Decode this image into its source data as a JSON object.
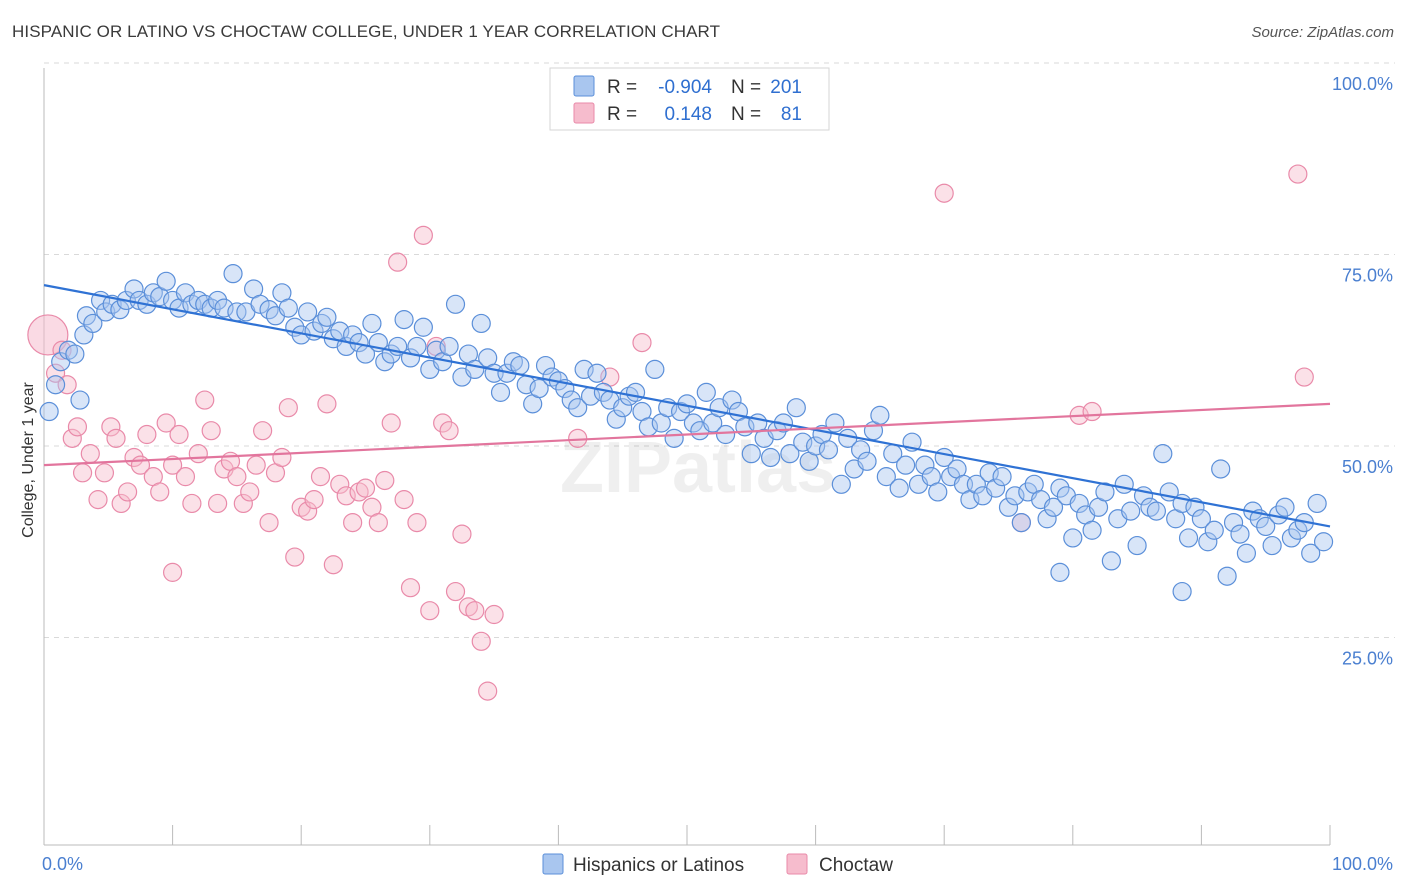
{
  "title": "HISPANIC OR LATINO VS CHOCTAW COLLEGE, UNDER 1 YEAR CORRELATION CHART",
  "source": "Source: ZipAtlas.com",
  "watermark": "ZIPatlas",
  "colors": {
    "blue_fill": "#a9c6ef",
    "blue_stroke": "#5b8fd9",
    "blue_line": "#2f72d4",
    "pink_fill": "#f6bccd",
    "pink_stroke": "#e98aa9",
    "pink_line": "#e2759d",
    "tick_text": "#4a7fd0",
    "grid": "#d9d9d9"
  },
  "legend": {
    "rows": [
      {
        "r_label": "R =",
        "r_value": "-0.904",
        "n_label": "N =",
        "n_value": "201"
      },
      {
        "r_label": "R =",
        "r_value": "0.148",
        "n_label": "N =",
        "n_value": "81"
      }
    ]
  },
  "chart_data": {
    "type": "scatter",
    "title": "HISPANIC OR LATINO VS CHOCTAW COLLEGE, UNDER 1 YEAR CORRELATION CHART",
    "xlabel": "",
    "ylabel": "College, Under 1 year",
    "xlim": [
      0,
      100
    ],
    "ylim": [
      0,
      100
    ],
    "x_tick_labels": [
      "0.0%",
      "100.0%"
    ],
    "y_ticks": [
      25,
      50,
      75,
      100
    ],
    "y_tick_labels": [
      "25.0%",
      "50.0%",
      "75.0%",
      "100.0%"
    ],
    "grid": "horizontal dashed",
    "legend_position": "top-center",
    "series": [
      {
        "name": "Hispanics or Latinos",
        "R": -0.904,
        "N": 201,
        "trend": {
          "x": [
            0,
            100
          ],
          "y": [
            71.0,
            39.5
          ]
        },
        "points": [
          [
            0.4,
            54.5
          ],
          [
            0.9,
            58.0
          ],
          [
            1.3,
            61.0
          ],
          [
            1.9,
            62.5
          ],
          [
            2.4,
            62.0
          ],
          [
            2.8,
            56.0
          ],
          [
            3.1,
            64.5
          ],
          [
            3.3,
            67.0
          ],
          [
            3.8,
            66.0
          ],
          [
            4.4,
            69.0
          ],
          [
            4.8,
            67.5
          ],
          [
            5.3,
            68.5
          ],
          [
            5.9,
            67.8
          ],
          [
            6.4,
            69.0
          ],
          [
            7.0,
            70.5
          ],
          [
            7.4,
            69.0
          ],
          [
            8.0,
            68.5
          ],
          [
            8.5,
            70.0
          ],
          [
            9.0,
            69.5
          ],
          [
            9.5,
            71.5
          ],
          [
            10.0,
            69.0
          ],
          [
            10.5,
            68.0
          ],
          [
            11.0,
            70.0
          ],
          [
            11.5,
            68.5
          ],
          [
            12.0,
            69.0
          ],
          [
            12.5,
            68.5
          ],
          [
            13.0,
            68.0
          ],
          [
            13.5,
            69.0
          ],
          [
            14.0,
            68.0
          ],
          [
            14.7,
            72.5
          ],
          [
            15.0,
            67.5
          ],
          [
            15.7,
            67.5
          ],
          [
            16.3,
            70.5
          ],
          [
            16.8,
            68.5
          ],
          [
            17.5,
            67.8
          ],
          [
            18.0,
            67.0
          ],
          [
            18.5,
            70.0
          ],
          [
            19.0,
            68.0
          ],
          [
            19.5,
            65.5
          ],
          [
            20.0,
            64.5
          ],
          [
            20.5,
            67.5
          ],
          [
            21.0,
            65.0
          ],
          [
            21.6,
            66.0
          ],
          [
            22.0,
            66.8
          ],
          [
            22.5,
            64.0
          ],
          [
            23.0,
            65.0
          ],
          [
            23.5,
            63.0
          ],
          [
            24.0,
            64.5
          ],
          [
            24.5,
            63.5
          ],
          [
            25.0,
            62.0
          ],
          [
            25.5,
            66.0
          ],
          [
            26.0,
            63.5
          ],
          [
            26.5,
            61.0
          ],
          [
            27.0,
            62.0
          ],
          [
            27.5,
            63.0
          ],
          [
            28.0,
            66.5
          ],
          [
            28.5,
            61.5
          ],
          [
            29.0,
            63.0
          ],
          [
            29.5,
            65.5
          ],
          [
            30.0,
            60.0
          ],
          [
            30.5,
            62.5
          ],
          [
            31.0,
            61.0
          ],
          [
            31.5,
            63.0
          ],
          [
            32.0,
            68.5
          ],
          [
            32.5,
            59.0
          ],
          [
            33.0,
            62.0
          ],
          [
            33.5,
            60.0
          ],
          [
            34.0,
            66.0
          ],
          [
            34.5,
            61.5
          ],
          [
            35.0,
            59.5
          ],
          [
            35.5,
            57.0
          ],
          [
            36.0,
            59.5
          ],
          [
            36.5,
            61.0
          ],
          [
            37.0,
            60.5
          ],
          [
            37.5,
            58.0
          ],
          [
            38.0,
            55.5
          ],
          [
            38.5,
            57.5
          ],
          [
            39.0,
            60.5
          ],
          [
            39.5,
            59.0
          ],
          [
            40.0,
            58.5
          ],
          [
            40.5,
            57.5
          ],
          [
            41.0,
            56.0
          ],
          [
            41.5,
            55.0
          ],
          [
            42.0,
            60.0
          ],
          [
            42.5,
            56.5
          ],
          [
            43.0,
            59.5
          ],
          [
            43.5,
            57.0
          ],
          [
            44.0,
            56.0
          ],
          [
            44.5,
            53.5
          ],
          [
            45.0,
            55.0
          ],
          [
            45.5,
            56.5
          ],
          [
            46.0,
            57.0
          ],
          [
            46.5,
            54.5
          ],
          [
            47.0,
            52.5
          ],
          [
            47.5,
            60.0
          ],
          [
            48.0,
            53.0
          ],
          [
            48.5,
            55.0
          ],
          [
            49.0,
            51.0
          ],
          [
            49.5,
            54.5
          ],
          [
            50.0,
            55.5
          ],
          [
            50.5,
            53.0
          ],
          [
            51.0,
            52.0
          ],
          [
            51.5,
            57.0
          ],
          [
            52.0,
            53.0
          ],
          [
            52.5,
            55.0
          ],
          [
            53.0,
            51.5
          ],
          [
            53.5,
            56.0
          ],
          [
            54.0,
            54.5
          ],
          [
            54.5,
            52.5
          ],
          [
            55.0,
            49.0
          ],
          [
            55.5,
            53.0
          ],
          [
            56.0,
            51.0
          ],
          [
            56.5,
            48.5
          ],
          [
            57.0,
            52.0
          ],
          [
            57.5,
            53.0
          ],
          [
            58.0,
            49.0
          ],
          [
            58.5,
            55.0
          ],
          [
            59.0,
            50.5
          ],
          [
            59.5,
            48.0
          ],
          [
            60.0,
            50.0
          ],
          [
            60.5,
            51.5
          ],
          [
            61.0,
            49.5
          ],
          [
            61.5,
            53.0
          ],
          [
            62.0,
            45.0
          ],
          [
            62.5,
            51.0
          ],
          [
            63.0,
            47.0
          ],
          [
            63.5,
            49.5
          ],
          [
            64.0,
            48.0
          ],
          [
            64.5,
            52.0
          ],
          [
            65.0,
            54.0
          ],
          [
            65.5,
            46.0
          ],
          [
            66.0,
            49.0
          ],
          [
            66.5,
            44.5
          ],
          [
            67.0,
            47.5
          ],
          [
            67.5,
            50.5
          ],
          [
            68.0,
            45.0
          ],
          [
            68.5,
            47.5
          ],
          [
            69.0,
            46.0
          ],
          [
            69.5,
            44.0
          ],
          [
            70.0,
            48.5
          ],
          [
            70.5,
            46.0
          ],
          [
            71.0,
            47.0
          ],
          [
            71.5,
            45.0
          ],
          [
            72.0,
            43.0
          ],
          [
            72.5,
            45.0
          ],
          [
            73.0,
            43.5
          ],
          [
            73.5,
            46.5
          ],
          [
            74.0,
            44.5
          ],
          [
            74.5,
            46.0
          ],
          [
            75.0,
            42.0
          ],
          [
            75.5,
            43.5
          ],
          [
            76.0,
            40.0
          ],
          [
            76.5,
            44.0
          ],
          [
            77.0,
            45.0
          ],
          [
            77.5,
            43.0
          ],
          [
            78.0,
            40.5
          ],
          [
            78.5,
            42.0
          ],
          [
            79.0,
            44.5
          ],
          [
            79.5,
            43.5
          ],
          [
            80.0,
            38.0
          ],
          [
            80.5,
            42.5
          ],
          [
            81.0,
            41.0
          ],
          [
            81.5,
            39.0
          ],
          [
            82.0,
            42.0
          ],
          [
            82.5,
            44.0
          ],
          [
            83.0,
            35.0
          ],
          [
            83.5,
            40.5
          ],
          [
            84.0,
            45.0
          ],
          [
            84.5,
            41.5
          ],
          [
            85.0,
            37.0
          ],
          [
            85.5,
            43.5
          ],
          [
            86.0,
            42.0
          ],
          [
            86.5,
            41.5
          ],
          [
            87.0,
            49.0
          ],
          [
            87.5,
            44.0
          ],
          [
            88.0,
            40.5
          ],
          [
            88.5,
            42.5
          ],
          [
            89.0,
            38.0
          ],
          [
            89.5,
            42.0
          ],
          [
            90.0,
            40.5
          ],
          [
            90.5,
            37.5
          ],
          [
            91.0,
            39.0
          ],
          [
            91.5,
            47.0
          ],
          [
            92.0,
            33.0
          ],
          [
            92.5,
            40.0
          ],
          [
            93.0,
            38.5
          ],
          [
            93.5,
            36.0
          ],
          [
            94.0,
            41.5
          ],
          [
            94.5,
            40.5
          ],
          [
            95.0,
            39.5
          ],
          [
            95.5,
            37.0
          ],
          [
            96.0,
            41.0
          ],
          [
            96.5,
            42.0
          ],
          [
            97.0,
            38.0
          ],
          [
            97.5,
            39.0
          ],
          [
            98.0,
            40.0
          ],
          [
            98.5,
            36.0
          ],
          [
            99.0,
            42.5
          ],
          [
            99.5,
            37.5
          ],
          [
            88.5,
            31.0
          ],
          [
            79.0,
            33.5
          ]
        ]
      },
      {
        "name": "Choctaw",
        "R": 0.148,
        "N": 81,
        "trend": {
          "x": [
            0,
            100
          ],
          "y": [
            47.5,
            55.5
          ]
        },
        "points": [
          [
            0.3,
            64.5
          ],
          [
            0.9,
            59.5
          ],
          [
            1.4,
            62.5
          ],
          [
            1.8,
            58.0
          ],
          [
            2.2,
            51.0
          ],
          [
            2.6,
            52.5
          ],
          [
            3.0,
            46.5
          ],
          [
            3.6,
            49.0
          ],
          [
            4.2,
            43.0
          ],
          [
            4.7,
            46.5
          ],
          [
            5.2,
            52.5
          ],
          [
            5.6,
            51.0
          ],
          [
            6.0,
            42.5
          ],
          [
            6.5,
            44.0
          ],
          [
            7.0,
            48.5
          ],
          [
            7.5,
            47.5
          ],
          [
            8.0,
            51.5
          ],
          [
            8.5,
            46.0
          ],
          [
            9.0,
            44.0
          ],
          [
            9.5,
            53.0
          ],
          [
            10.0,
            47.5
          ],
          [
            10.5,
            51.5
          ],
          [
            11.0,
            46.0
          ],
          [
            11.5,
            42.5
          ],
          [
            12.0,
            49.0
          ],
          [
            12.5,
            56.0
          ],
          [
            13.0,
            52.0
          ],
          [
            13.5,
            42.5
          ],
          [
            14.0,
            47.0
          ],
          [
            14.5,
            48.0
          ],
          [
            15.0,
            46.0
          ],
          [
            15.5,
            42.5
          ],
          [
            16.0,
            44.0
          ],
          [
            16.5,
            47.5
          ],
          [
            17.0,
            52.0
          ],
          [
            17.5,
            40.0
          ],
          [
            18.0,
            46.5
          ],
          [
            18.5,
            48.5
          ],
          [
            19.0,
            55.0
          ],
          [
            19.5,
            35.5
          ],
          [
            20.0,
            42.0
          ],
          [
            20.5,
            41.5
          ],
          [
            21.0,
            43.0
          ],
          [
            21.5,
            46.0
          ],
          [
            22.0,
            55.5
          ],
          [
            22.5,
            34.5
          ],
          [
            23.0,
            45.0
          ],
          [
            23.5,
            43.5
          ],
          [
            24.0,
            40.0
          ],
          [
            24.5,
            44.0
          ],
          [
            25.0,
            44.5
          ],
          [
            25.5,
            42.0
          ],
          [
            26.0,
            40.0
          ],
          [
            26.5,
            45.5
          ],
          [
            27.0,
            53.0
          ],
          [
            27.5,
            74.0
          ],
          [
            28.0,
            43.0
          ],
          [
            28.5,
            31.5
          ],
          [
            29.0,
            40.0
          ],
          [
            29.5,
            77.5
          ],
          [
            30.0,
            28.5
          ],
          [
            30.5,
            63.0
          ],
          [
            31.0,
            53.0
          ],
          [
            31.5,
            52.0
          ],
          [
            32.0,
            31.0
          ],
          [
            32.5,
            38.5
          ],
          [
            33.0,
            29.0
          ],
          [
            33.5,
            28.5
          ],
          [
            34.0,
            24.5
          ],
          [
            34.5,
            18.0
          ],
          [
            35.0,
            28.0
          ],
          [
            41.5,
            51.0
          ],
          [
            44.0,
            59.0
          ],
          [
            46.5,
            63.5
          ],
          [
            70.0,
            83.0
          ],
          [
            76.0,
            40.0
          ],
          [
            80.5,
            54.0
          ],
          [
            81.5,
            54.5
          ],
          [
            97.5,
            85.5
          ],
          [
            98.0,
            59.0
          ],
          [
            10.0,
            33.5
          ]
        ]
      }
    ]
  },
  "bottom_legend": [
    {
      "label": "Hispanics or Latinos"
    },
    {
      "label": "Choctaw"
    }
  ]
}
